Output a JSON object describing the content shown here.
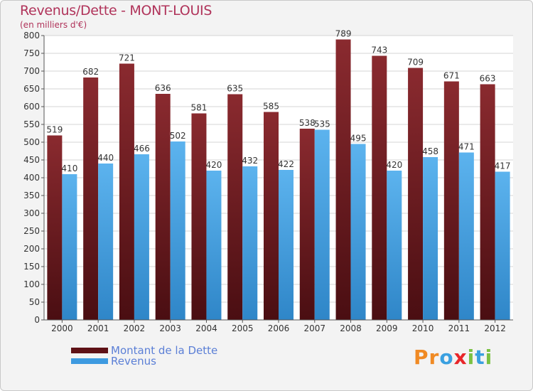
{
  "title": "Revenus/Dette - MONT-LOUIS",
  "subtitle": "(en milliers d'€)",
  "logo": {
    "text": "Proxiti",
    "letters": [
      {
        "ch": "P",
        "color": "#f08a24"
      },
      {
        "ch": "r",
        "color": "#f08a24"
      },
      {
        "ch": "o",
        "color": "#3aa0e0"
      },
      {
        "ch": "x",
        "color": "#e8262a"
      },
      {
        "ch": "i",
        "color": "#7bc143"
      },
      {
        "ch": "t",
        "color": "#3aa0e0"
      },
      {
        "ch": "i",
        "color": "#7bc143"
      }
    ]
  },
  "chart_data": {
    "type": "bar",
    "categories": [
      "2000",
      "2001",
      "2002",
      "2003",
      "2004",
      "2005",
      "2006",
      "2007",
      "2008",
      "2009",
      "2010",
      "2011",
      "2012"
    ],
    "series": [
      {
        "name": "Montant de la Dette",
        "color": "#7a1f24",
        "values": [
          519,
          682,
          721,
          636,
          581,
          635,
          585,
          538,
          789,
          743,
          709,
          671,
          663
        ]
      },
      {
        "name": "Revenus",
        "color": "#4aa6e6",
        "values": [
          410,
          440,
          466,
          502,
          420,
          432,
          422,
          535,
          495,
          420,
          458,
          471,
          417
        ]
      }
    ],
    "ylim": [
      0,
      800
    ],
    "ytick_step": 50,
    "grid": true
  }
}
